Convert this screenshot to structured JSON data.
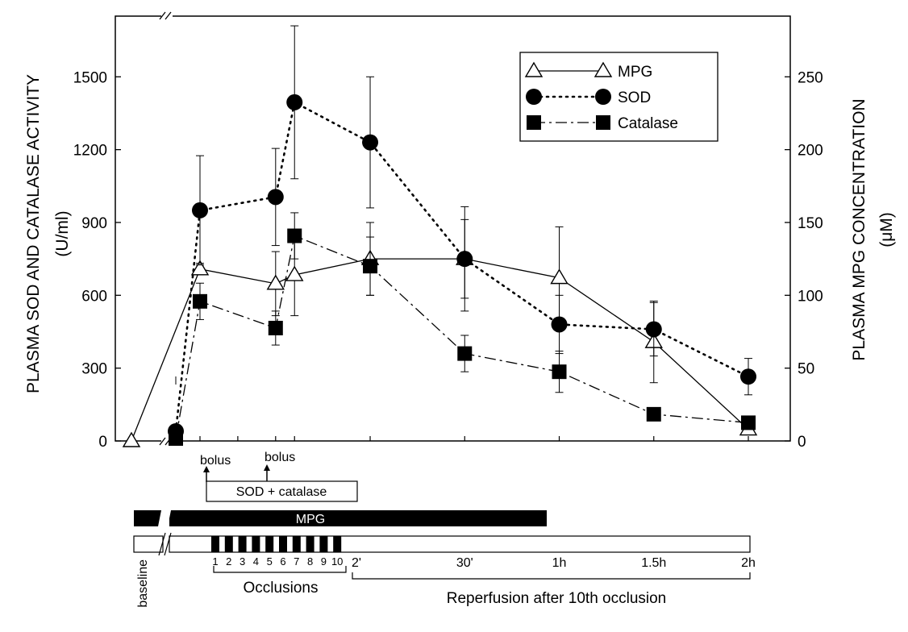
{
  "chart_data": {
    "type": "line",
    "ylabel_left": "PLASMA SOD AND CATALASE ACTIVITY",
    "ylabel_left_unit": "(U/ml)",
    "ylabel_right": "PLASMA MPG CONCENTRATION",
    "ylabel_right_unit": "(μM)",
    "ylim_left": [
      0,
      1750
    ],
    "ylim_right": [
      0,
      291.67
    ],
    "yticks_left": [
      "0",
      "300",
      "600",
      "900",
      "1200",
      "1500"
    ],
    "yticks_right": [
      "0",
      "50",
      "100",
      "150",
      "200",
      "250"
    ],
    "legend_position": "top-right",
    "series": [
      {
        "name": "MPG",
        "axis": "right",
        "marker": "open-triangle",
        "line": "solid",
        "points": [
          {
            "x": 0,
            "y": 0,
            "err": 0
          },
          {
            "x": 1,
            "y": 118,
            "err": 4
          },
          {
            "x": 5,
            "y": 108,
            "err": 22
          },
          {
            "x": 6,
            "y": 114,
            "err": 28
          },
          {
            "x": 10,
            "y": 125,
            "err": 25
          },
          {
            "x": 15,
            "y": 125,
            "err": 27
          },
          {
            "x": 20,
            "y": 112,
            "err": 35
          },
          {
            "x": 25,
            "y": 68,
            "err": 28
          },
          {
            "x": 30,
            "y": 8,
            "err": 2
          }
        ]
      },
      {
        "name": "SOD",
        "axis": "left",
        "marker": "filled-circle",
        "line": "dotted",
        "points": [
          {
            "x": -1,
            "y": 40,
            "err": 0
          },
          {
            "x": 1,
            "y": 950,
            "err": 225
          },
          {
            "x": 5,
            "y": 1005,
            "err": 200
          },
          {
            "x": 6,
            "y": 1395,
            "err": 315
          },
          {
            "x": 10,
            "y": 1230,
            "err": 270
          },
          {
            "x": 15,
            "y": 750,
            "err": 215
          },
          {
            "x": 20,
            "y": 480,
            "err": 120
          },
          {
            "x": 25,
            "y": 460,
            "err": 110
          },
          {
            "x": 30,
            "y": 265,
            "err": 75
          }
        ]
      },
      {
        "name": "Catalase",
        "axis": "left",
        "marker": "filled-square",
        "line": "dash-dot",
        "points": [
          {
            "x": -1,
            "y": 10,
            "err": 0
          },
          {
            "x": 1,
            "y": 575,
            "err": 75
          },
          {
            "x": 5,
            "y": 465,
            "err": 70
          },
          {
            "x": 6,
            "y": 845,
            "err": 95
          },
          {
            "x": 10,
            "y": 720,
            "err": 120
          },
          {
            "x": 15,
            "y": 360,
            "err": 75
          },
          {
            "x": 20,
            "y": 285,
            "err": 85
          },
          {
            "x": 25,
            "y": 110,
            "err": 0
          },
          {
            "x": 30,
            "y": 75,
            "err": 0
          }
        ]
      }
    ],
    "bolus_label": "bolus",
    "sod_catalase_label": "SOD + catalase",
    "mpg_bar_label": "MPG",
    "occlusion_numbers": [
      "1",
      "2",
      "3",
      "4",
      "5",
      "6",
      "7",
      "8",
      "9",
      "10"
    ],
    "timeline_labels": [
      {
        "x": 11,
        "text": "2'"
      },
      {
        "x": 15,
        "text": "30'"
      },
      {
        "x": 20,
        "text": "1h"
      },
      {
        "x": 25,
        "text": "1.5h"
      },
      {
        "x": 30,
        "text": "2h"
      }
    ],
    "baseline_label": "baseline",
    "occlusions_label": "Occlusions",
    "reperfusion_label": "Reperfusion after 10th occlusion"
  }
}
